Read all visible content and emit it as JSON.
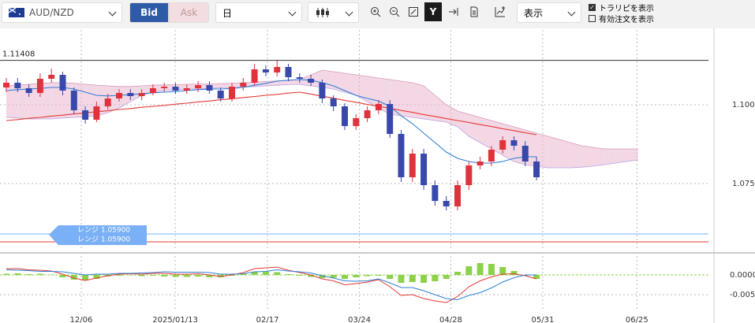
{
  "toolbar": {
    "pair": "AUD/NZD",
    "bid": "Bid",
    "ask": "Ask",
    "period": "日",
    "display": "表示",
    "checks": [
      {
        "label": "トラリピを表示",
        "checked": true
      },
      {
        "label": "有効注文を表示",
        "checked": false
      }
    ]
  },
  "chart_data": {
    "type": "candlestick",
    "xlim": [
      -0.56,
      62.38
    ],
    "xticks": [
      {
        "value": 6.64,
        "label": "12/06"
      },
      {
        "value": 14.97,
        "label": "2025/01/13"
      },
      {
        "value": 23.15,
        "label": "02/17"
      },
      {
        "value": 31.3,
        "label": "03/24"
      },
      {
        "value": 39.4,
        "label": "04/28"
      },
      {
        "value": 47.55,
        "label": "05/31"
      },
      {
        "value": 55.9,
        "label": "06/25"
      }
    ],
    "ylim": [
      1.05375,
      1.12375
    ],
    "yticks": [
      {
        "value": 1.1,
        "label": "1.1000"
      },
      {
        "value": 1.075,
        "label": "1.0750"
      }
    ],
    "grid": true,
    "up_color": "#e0323c",
    "down_color": "#3949ab",
    "open": [
      1.1055,
      1.107,
      1.10525,
      1.10375,
      1.10825,
      1.1095,
      1.1045,
      1.09825,
      1.09525,
      1.0995,
      1.102,
      1.10375,
      1.10275,
      1.10375,
      1.10525,
      1.10575,
      1.1045,
      1.10525,
      1.10625,
      1.1045,
      1.102,
      1.10575,
      1.107,
      1.11125,
      1.11025,
      1.112,
      1.10875,
      1.10825,
      1.107,
      1.102,
      1.0995,
      1.09325,
      1.09575,
      1.09825,
      1.10025,
      1.09075,
      1.077,
      1.0845,
      1.0745,
      1.0695,
      1.06775,
      1.0745,
      1.08075,
      1.082,
      1.08575,
      1.08875,
      1.087,
      1.082
    ],
    "high": [
      1.1085,
      1.1085,
      1.1065,
      1.11,
      1.1115,
      1.1105,
      1.1055,
      1.0995,
      1.101,
      1.1035,
      1.105,
      1.105,
      1.105,
      1.1065,
      1.107,
      1.107,
      1.1065,
      1.1075,
      1.1075,
      1.1055,
      1.107,
      1.1085,
      1.113,
      1.1125,
      1.114,
      1.113,
      1.11,
      1.1095,
      1.108,
      1.103,
      1.1005,
      1.097,
      1.0995,
      1.1015,
      1.1015,
      1.092,
      1.086,
      1.086,
      1.076,
      1.071,
      1.076,
      1.082,
      1.0835,
      1.087,
      1.09,
      1.09,
      1.0885,
      1.0835
    ],
    "low": [
      1.104,
      1.104,
      1.1025,
      1.1025,
      1.107,
      1.103,
      1.097,
      1.094,
      1.0945,
      1.0985,
      1.101,
      1.1015,
      1.1015,
      1.103,
      1.104,
      1.1035,
      1.1035,
      1.104,
      1.1035,
      1.101,
      1.101,
      1.1045,
      1.106,
      1.109,
      1.109,
      1.1075,
      1.107,
      1.106,
      1.1005,
      1.098,
      1.092,
      1.092,
      1.0945,
      1.097,
      1.0895,
      1.0755,
      1.0755,
      1.073,
      1.068,
      1.0665,
      1.0665,
      1.073,
      1.0795,
      1.0805,
      1.0845,
      1.0855,
      1.0805,
      1.076
    ],
    "close": [
      1.107,
      1.10525,
      1.10375,
      1.10825,
      1.1095,
      1.1045,
      1.09825,
      1.09525,
      1.0995,
      1.102,
      1.10375,
      1.10275,
      1.10375,
      1.10525,
      1.10575,
      1.1045,
      1.10525,
      1.10625,
      1.1045,
      1.102,
      1.10575,
      1.107,
      1.11125,
      1.11025,
      1.112,
      1.10875,
      1.10825,
      1.107,
      1.102,
      1.0995,
      1.09325,
      1.09575,
      1.09825,
      1.10025,
      1.09075,
      1.077,
      1.0845,
      1.0745,
      1.0695,
      1.06775,
      1.0745,
      1.08075,
      1.082,
      1.08575,
      1.08875,
      1.087,
      1.082,
      1.077
    ],
    "overlays": [
      {
        "color": "#2f7fd6",
        "values": [
          1.1045,
          1.1048,
          1.105,
          1.1052,
          1.1055,
          1.1055,
          1.105,
          1.104,
          1.103,
          1.1028,
          1.103,
          1.1032,
          1.1035,
          1.1038,
          1.104,
          1.1042,
          1.1045,
          1.1048,
          1.105,
          1.105,
          1.1052,
          1.1055,
          1.1062,
          1.1068,
          1.1075,
          1.1078,
          1.108,
          1.1078,
          1.107,
          1.106,
          1.1045,
          1.103,
          1.102,
          1.1012,
          1.0995,
          1.0965,
          1.094,
          1.091,
          1.088,
          1.085,
          1.083,
          1.082,
          1.0815,
          1.0815,
          1.082,
          1.083,
          1.0835,
          1.0835
        ]
      },
      {
        "color": "#e53935",
        "values": [
          1.095,
          1.0953,
          1.0957,
          1.096,
          1.0964,
          1.0967,
          1.0971,
          1.0974,
          1.0978,
          1.0981,
          1.0985,
          1.0988,
          1.0992,
          1.0995,
          1.0998,
          1.1002,
          1.1005,
          1.1009,
          1.1012,
          1.1016,
          1.1019,
          1.1023,
          1.1026,
          1.103,
          1.1033,
          1.1037,
          1.104,
          1.1034,
          1.1027,
          1.1021,
          1.1014,
          1.1008,
          1.1001,
          1.0995,
          1.0989,
          1.0982,
          1.0976,
          1.0969,
          1.0963,
          1.0956,
          1.095,
          1.0944,
          1.0937,
          1.0931,
          1.0924,
          1.0918,
          1.0911,
          1.0905
        ]
      }
    ],
    "cloud": {
      "color": "#e9b7cf",
      "span_a": [
        1.106,
        1.1062,
        1.1065,
        1.1068,
        1.107,
        1.107,
        1.1068,
        1.1065,
        1.1062,
        1.106,
        1.1058,
        1.1058,
        1.106,
        1.1062,
        1.1063,
        1.1064,
        1.1065,
        1.1066,
        1.1066,
        1.1067,
        1.1068,
        1.107,
        1.1072,
        1.1074,
        1.1076,
        1.1078,
        1.108,
        1.1095,
        1.111,
        1.1105,
        1.11,
        1.1095,
        1.109,
        1.1085,
        1.108,
        1.1075,
        1.107,
        1.106,
        1.103,
        1.1,
        1.098,
        1.097,
        1.096,
        1.095,
        1.094,
        1.093,
        1.092,
        1.091,
        1.09,
        1.089,
        1.088,
        1.087,
        1.0865,
        1.086,
        1.086,
        1.086,
        1.086
      ],
      "span_b": [
        1.096,
        1.0958,
        1.0955,
        1.0955,
        1.0955,
        1.0958,
        1.096,
        1.0962,
        1.0965,
        1.0975,
        1.099,
        1.101,
        1.103,
        1.104,
        1.1045,
        1.1048,
        1.105,
        1.105,
        1.1052,
        1.1054,
        1.1055,
        1.1056,
        1.1058,
        1.106,
        1.1062,
        1.1064,
        1.1065,
        1.106,
        1.1055,
        1.105,
        1.104,
        1.103,
        1.101,
        1.099,
        1.097,
        1.0965,
        1.096,
        1.0955,
        1.095,
        1.0945,
        1.093,
        1.09,
        1.088,
        1.086,
        1.084,
        1.082,
        1.081,
        1.0805,
        1.08,
        1.08,
        1.08,
        1.0802,
        1.0805,
        1.081,
        1.0815,
        1.082,
        1.0825
      ]
    },
    "hline": {
      "label": "1.11408",
      "value": 1.11408,
      "color": "#333333"
    },
    "ranges": [
      {
        "label": "レンジ 1.05900",
        "value": 1.059,
        "color": "#7ab0f5"
      },
      {
        "label": "レンジ 1.05900",
        "value": 1.059,
        "color": "#7ab0f5"
      }
    ],
    "stop_line": {
      "value": 1.0565,
      "color": "#e53935"
    },
    "macd": {
      "ylim": [
        -0.0092,
        0.0048
      ],
      "yticks": [
        {
          "value": 0,
          "label": "0.0000"
        },
        {
          "value": -0.005,
          "label": "-0.0050"
        }
      ],
      "hist_color": "#8bd14a",
      "macd_color": "#e53935",
      "signal_color": "#2f7fd6",
      "hist": [
        0.0003,
        0.0004,
        0.0002,
        0.0003,
        0.0001,
        -0.0006,
        -0.0012,
        -0.0014,
        -0.001,
        -0.0004,
        -0.0002,
        -0.0001,
        -0.0003,
        -0.0002,
        -0.0004,
        -0.0005,
        -0.0005,
        -0.0004,
        -0.0006,
        -0.0006,
        -0.0002,
        0.0003,
        0.0008,
        0.0009,
        0.0007,
        0.0002,
        -0.0002,
        -0.0005,
        -0.0008,
        -0.0007,
        -0.001,
        -0.0006,
        -0.0003,
        -0.0002,
        -0.001,
        -0.002,
        -0.0018,
        -0.002,
        -0.0016,
        -0.001,
        0.0008,
        0.0022,
        0.003,
        0.0028,
        0.002,
        0.001,
        -0.0002,
        -0.001
      ],
      "macd": [
        0.0016,
        0.0016,
        0.0013,
        0.0012,
        0.001,
        0.0002,
        -0.0008,
        -0.0014,
        -0.0008,
        -0.0002,
        0.0002,
        0.0003,
        0.0002,
        0.0004,
        0.0004,
        0.0002,
        0.0002,
        0.0003,
        0,
        -0.0004,
        0,
        0.0006,
        0.0016,
        0.0018,
        0.002,
        0.0012,
        0.0006,
        0,
        -0.001,
        -0.0015,
        -0.0025,
        -0.0022,
        -0.0018,
        -0.0012,
        -0.003,
        -0.0052,
        -0.005,
        -0.006,
        -0.0066,
        -0.007,
        -0.0055,
        -0.003,
        -0.0015,
        -0.0005,
        0.0002,
        0.0003,
        -0.0002,
        -0.001
      ],
      "signal": [
        0.0013,
        0.0012,
        0.0011,
        0.0009,
        0.0009,
        0.0008,
        0.0004,
        0,
        0.0002,
        0.0002,
        0.0004,
        0.0004,
        0.0005,
        0.0006,
        0.0008,
        0.0007,
        0.0007,
        0.0007,
        0.0006,
        0.0002,
        0.0002,
        0.0003,
        0.0008,
        0.0009,
        0.0013,
        0.001,
        0.0008,
        0.0005,
        -0.0002,
        -0.0008,
        -0.0015,
        -0.0016,
        -0.0015,
        -0.001,
        -0.002,
        -0.0032,
        -0.0032,
        -0.004,
        -0.005,
        -0.006,
        -0.0063,
        -0.0052,
        -0.0045,
        -0.0033,
        -0.0018,
        -0.0007,
        0,
        0
      ]
    }
  }
}
